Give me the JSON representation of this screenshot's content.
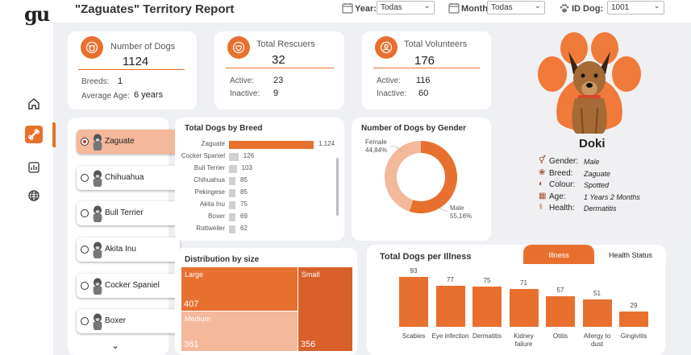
{
  "app": {
    "logo": "gu"
  },
  "header": {
    "title": "\"Zaguates\" Territory Report",
    "filters": [
      {
        "label": "Year:",
        "value": "Todas",
        "icon": "calendar-icon"
      },
      {
        "label": "Month:",
        "value": "Todas",
        "icon": "calendar-icon"
      },
      {
        "label": "ID Dog:",
        "value": "1001",
        "icon": "paw-icon"
      }
    ]
  },
  "nav": [
    {
      "icon": "home-icon",
      "active": false
    },
    {
      "icon": "bone-icon",
      "active": true
    },
    {
      "icon": "chart-icon",
      "active": false
    },
    {
      "icon": "globe-icon",
      "active": false
    }
  ],
  "kpis": {
    "dogs": {
      "title": "Number of Dogs",
      "value": "1124",
      "sub1_label": "Breeds:",
      "sub1_value": "1",
      "sub2_label": "Average Age:",
      "sub2_value": "6 years"
    },
    "rescuers": {
      "title": "Total Rescuers",
      "value": "32",
      "sub1_label": "Active:",
      "sub1_value": "23",
      "sub2_label": "Inactive:",
      "sub2_value": "9"
    },
    "volunteers": {
      "title": "Total Volunteers",
      "value": "176",
      "sub1_label": "Active:",
      "sub1_value": "116",
      "sub2_label": "Inactive:",
      "sub2_value": "60"
    }
  },
  "breed_list": [
    {
      "name": "Zaguate",
      "selected": true
    },
    {
      "name": "Chihuahua",
      "selected": false
    },
    {
      "name": "Bull Terrier",
      "selected": false
    },
    {
      "name": "Akita Inu",
      "selected": false
    },
    {
      "name": "Cocker Spaniel",
      "selected": false
    },
    {
      "name": "Boxer",
      "selected": false
    }
  ],
  "breed_chart": {
    "title": "Total Dogs by Breed",
    "rows": [
      {
        "label": "Zaguate",
        "value": 1124,
        "display": "1.124",
        "highlight": true
      },
      {
        "label": "Cocker Spaniel",
        "value": 126,
        "display": "126",
        "highlight": false
      },
      {
        "label": "Bull Terrier",
        "value": 103,
        "display": "103",
        "highlight": false
      },
      {
        "label": "Chihuahua",
        "value": 85,
        "display": "85",
        "highlight": false
      },
      {
        "label": "Pekingese",
        "value": 85,
        "display": "85",
        "highlight": false
      },
      {
        "label": "Akita Inu",
        "value": 75,
        "display": "75",
        "highlight": false
      },
      {
        "label": "Boxer",
        "value": 69,
        "display": "69",
        "highlight": false
      },
      {
        "label": "Rottweiler",
        "value": 62,
        "display": "62",
        "highlight": false
      }
    ]
  },
  "gender_chart": {
    "title": "Number of Dogs by Gender",
    "female_label": "Female",
    "female_pct": "44,84%",
    "male_label": "Male",
    "male_pct": "55,16%",
    "female_value": 44.84,
    "male_value": 55.16
  },
  "size_chart": {
    "title": "Distribution by size",
    "cells": [
      {
        "label": "Large",
        "value": 407
      },
      {
        "label": "Medium",
        "value": 361
      },
      {
        "label": "Small",
        "value": 356
      }
    ]
  },
  "illness_chart": {
    "title": "Total Dogs per Illness",
    "tabs": [
      {
        "label": "Illness",
        "active": true
      },
      {
        "label": "Health Status",
        "active": false
      }
    ],
    "bars": [
      {
        "label": "Scabies",
        "value": 93
      },
      {
        "label": "Eye infection",
        "value": 77
      },
      {
        "label": "Dermatitis",
        "value": 75
      },
      {
        "label": "Kidney failure",
        "value": 71
      },
      {
        "label": "Otitis",
        "value": 57
      },
      {
        "label": "Allergy to dust",
        "value": 51
      },
      {
        "label": "Gingivitis",
        "value": 29
      }
    ]
  },
  "profile": {
    "name": "Doki",
    "fields": [
      {
        "icon": "gender-icon",
        "label": "Gender:",
        "value": "Male"
      },
      {
        "icon": "paw-icon",
        "label": "Breed:",
        "value": "Zaguate"
      },
      {
        "icon": "palette-icon",
        "label": "Colour:",
        "value": "Spotted"
      },
      {
        "icon": "calendar-icon",
        "label": "Age:",
        "value": "1 Years 2 Months"
      },
      {
        "icon": "health-icon",
        "label": "Health:",
        "value": "Dermatitis"
      }
    ]
  },
  "colors": {
    "accent": "#e8702f",
    "accent_light": "#f4b89a",
    "grey_bar": "#d0d0d0"
  }
}
